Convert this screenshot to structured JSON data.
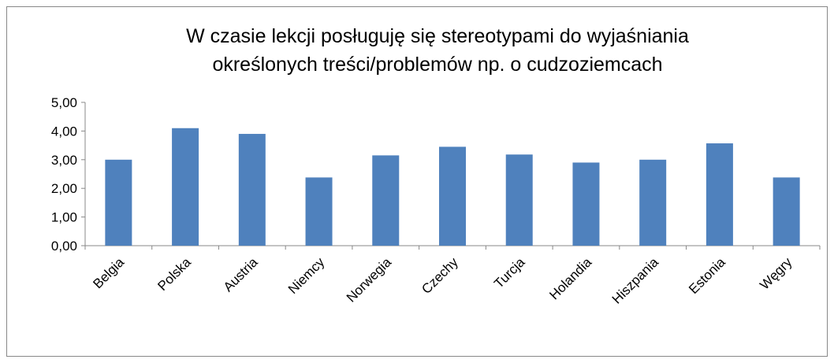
{
  "chart_data": {
    "type": "bar",
    "title": [
      "W czasie lekcji posługuję się stereotypami do wyjaśniania",
      "określonych treści/problemów np. o cudzoziemcach"
    ],
    "categories": [
      "Belgia",
      "Polska",
      "Austria",
      "Niemcy",
      "Norwegia",
      "Czechy",
      "Turcja",
      "Holandia",
      "Hiszpania",
      "Estonia",
      "Węgry"
    ],
    "values": [
      3.0,
      4.1,
      3.9,
      2.38,
      3.15,
      3.45,
      3.18,
      2.9,
      3.0,
      3.57,
      2.38
    ],
    "color": "#4f81bd",
    "ylim": [
      0,
      5
    ],
    "yticks": [
      {
        "value": 0,
        "label": "0,00"
      },
      {
        "value": 1,
        "label": "1,00"
      },
      {
        "value": 2,
        "label": "2,00"
      },
      {
        "value": 3,
        "label": "3,00"
      },
      {
        "value": 4,
        "label": "4,00"
      },
      {
        "value": 5,
        "label": "5,00"
      }
    ],
    "grid": false
  }
}
